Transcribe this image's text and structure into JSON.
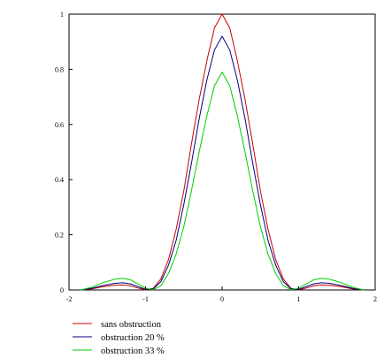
{
  "chart_data": {
    "type": "line",
    "title": "",
    "xlabel": "",
    "ylabel": "",
    "xlim": [
      -2,
      2
    ],
    "ylim": [
      0,
      1
    ],
    "x_ticks": [
      -2,
      -1,
      0,
      1,
      2
    ],
    "x_tick_labels": [
      "-2",
      "-1",
      "0",
      "1",
      "2"
    ],
    "y_ticks": [
      0,
      0.2,
      0.4,
      0.6,
      0.8,
      1
    ],
    "y_tick_labels": [
      "0",
      "0.2",
      "0.4",
      "0.6",
      "0.8",
      "1"
    ],
    "grid": false,
    "legend_position": "bottom-left",
    "series": [
      {
        "name": "sans obstruction",
        "color": "#cc0000",
        "x": [
          -1.85,
          -1.7,
          -1.55,
          -1.4,
          -1.3,
          -1.2,
          -1.1,
          -1.0,
          -0.9,
          -0.8,
          -0.7,
          -0.6,
          -0.5,
          -0.4,
          -0.3,
          -0.2,
          -0.1,
          0,
          0.1,
          0.2,
          0.3,
          0.4,
          0.5,
          0.6,
          0.7,
          0.8,
          0.9,
          1.0,
          1.1,
          1.2,
          1.3,
          1.4,
          1.55,
          1.7,
          1.85
        ],
        "y": [
          0.0,
          0.004,
          0.012,
          0.017,
          0.018,
          0.015,
          0.007,
          0.0,
          0.006,
          0.04,
          0.11,
          0.22,
          0.36,
          0.53,
          0.69,
          0.83,
          0.95,
          1.0,
          0.95,
          0.83,
          0.69,
          0.53,
          0.36,
          0.22,
          0.11,
          0.04,
          0.006,
          0.0,
          0.007,
          0.015,
          0.018,
          0.017,
          0.012,
          0.004,
          0.0
        ]
      },
      {
        "name": "obstruction 20 %",
        "color": "#00007f",
        "x": [
          -1.85,
          -1.7,
          -1.55,
          -1.4,
          -1.3,
          -1.2,
          -1.1,
          -1.0,
          -0.9,
          -0.8,
          -0.7,
          -0.6,
          -0.5,
          -0.4,
          -0.3,
          -0.2,
          -0.1,
          0,
          0.1,
          0.2,
          0.3,
          0.4,
          0.5,
          0.6,
          0.7,
          0.8,
          0.9,
          1.0,
          1.1,
          1.2,
          1.3,
          1.4,
          1.55,
          1.7,
          1.85
        ],
        "y": [
          0.0,
          0.006,
          0.016,
          0.024,
          0.026,
          0.022,
          0.012,
          0.002,
          0.004,
          0.03,
          0.09,
          0.18,
          0.31,
          0.46,
          0.62,
          0.76,
          0.87,
          0.92,
          0.87,
          0.76,
          0.62,
          0.46,
          0.31,
          0.18,
          0.09,
          0.03,
          0.004,
          0.002,
          0.012,
          0.022,
          0.026,
          0.024,
          0.016,
          0.006,
          0.0
        ]
      },
      {
        "name": "obstruction 33 %",
        "color": "#00cc00",
        "x": [
          -1.85,
          -1.7,
          -1.55,
          -1.4,
          -1.3,
          -1.2,
          -1.1,
          -1.0,
          -0.9,
          -0.8,
          -0.7,
          -0.6,
          -0.5,
          -0.4,
          -0.3,
          -0.2,
          -0.1,
          0,
          0.1,
          0.2,
          0.3,
          0.4,
          0.5,
          0.6,
          0.7,
          0.8,
          0.9,
          1.0,
          1.1,
          1.2,
          1.3,
          1.4,
          1.55,
          1.7,
          1.85
        ],
        "y": [
          0.0,
          0.01,
          0.027,
          0.039,
          0.042,
          0.037,
          0.022,
          0.006,
          0.001,
          0.015,
          0.06,
          0.13,
          0.23,
          0.36,
          0.5,
          0.63,
          0.74,
          0.79,
          0.74,
          0.63,
          0.5,
          0.36,
          0.23,
          0.13,
          0.06,
          0.015,
          0.001,
          0.006,
          0.022,
          0.037,
          0.042,
          0.039,
          0.027,
          0.01,
          0.0
        ]
      }
    ]
  }
}
